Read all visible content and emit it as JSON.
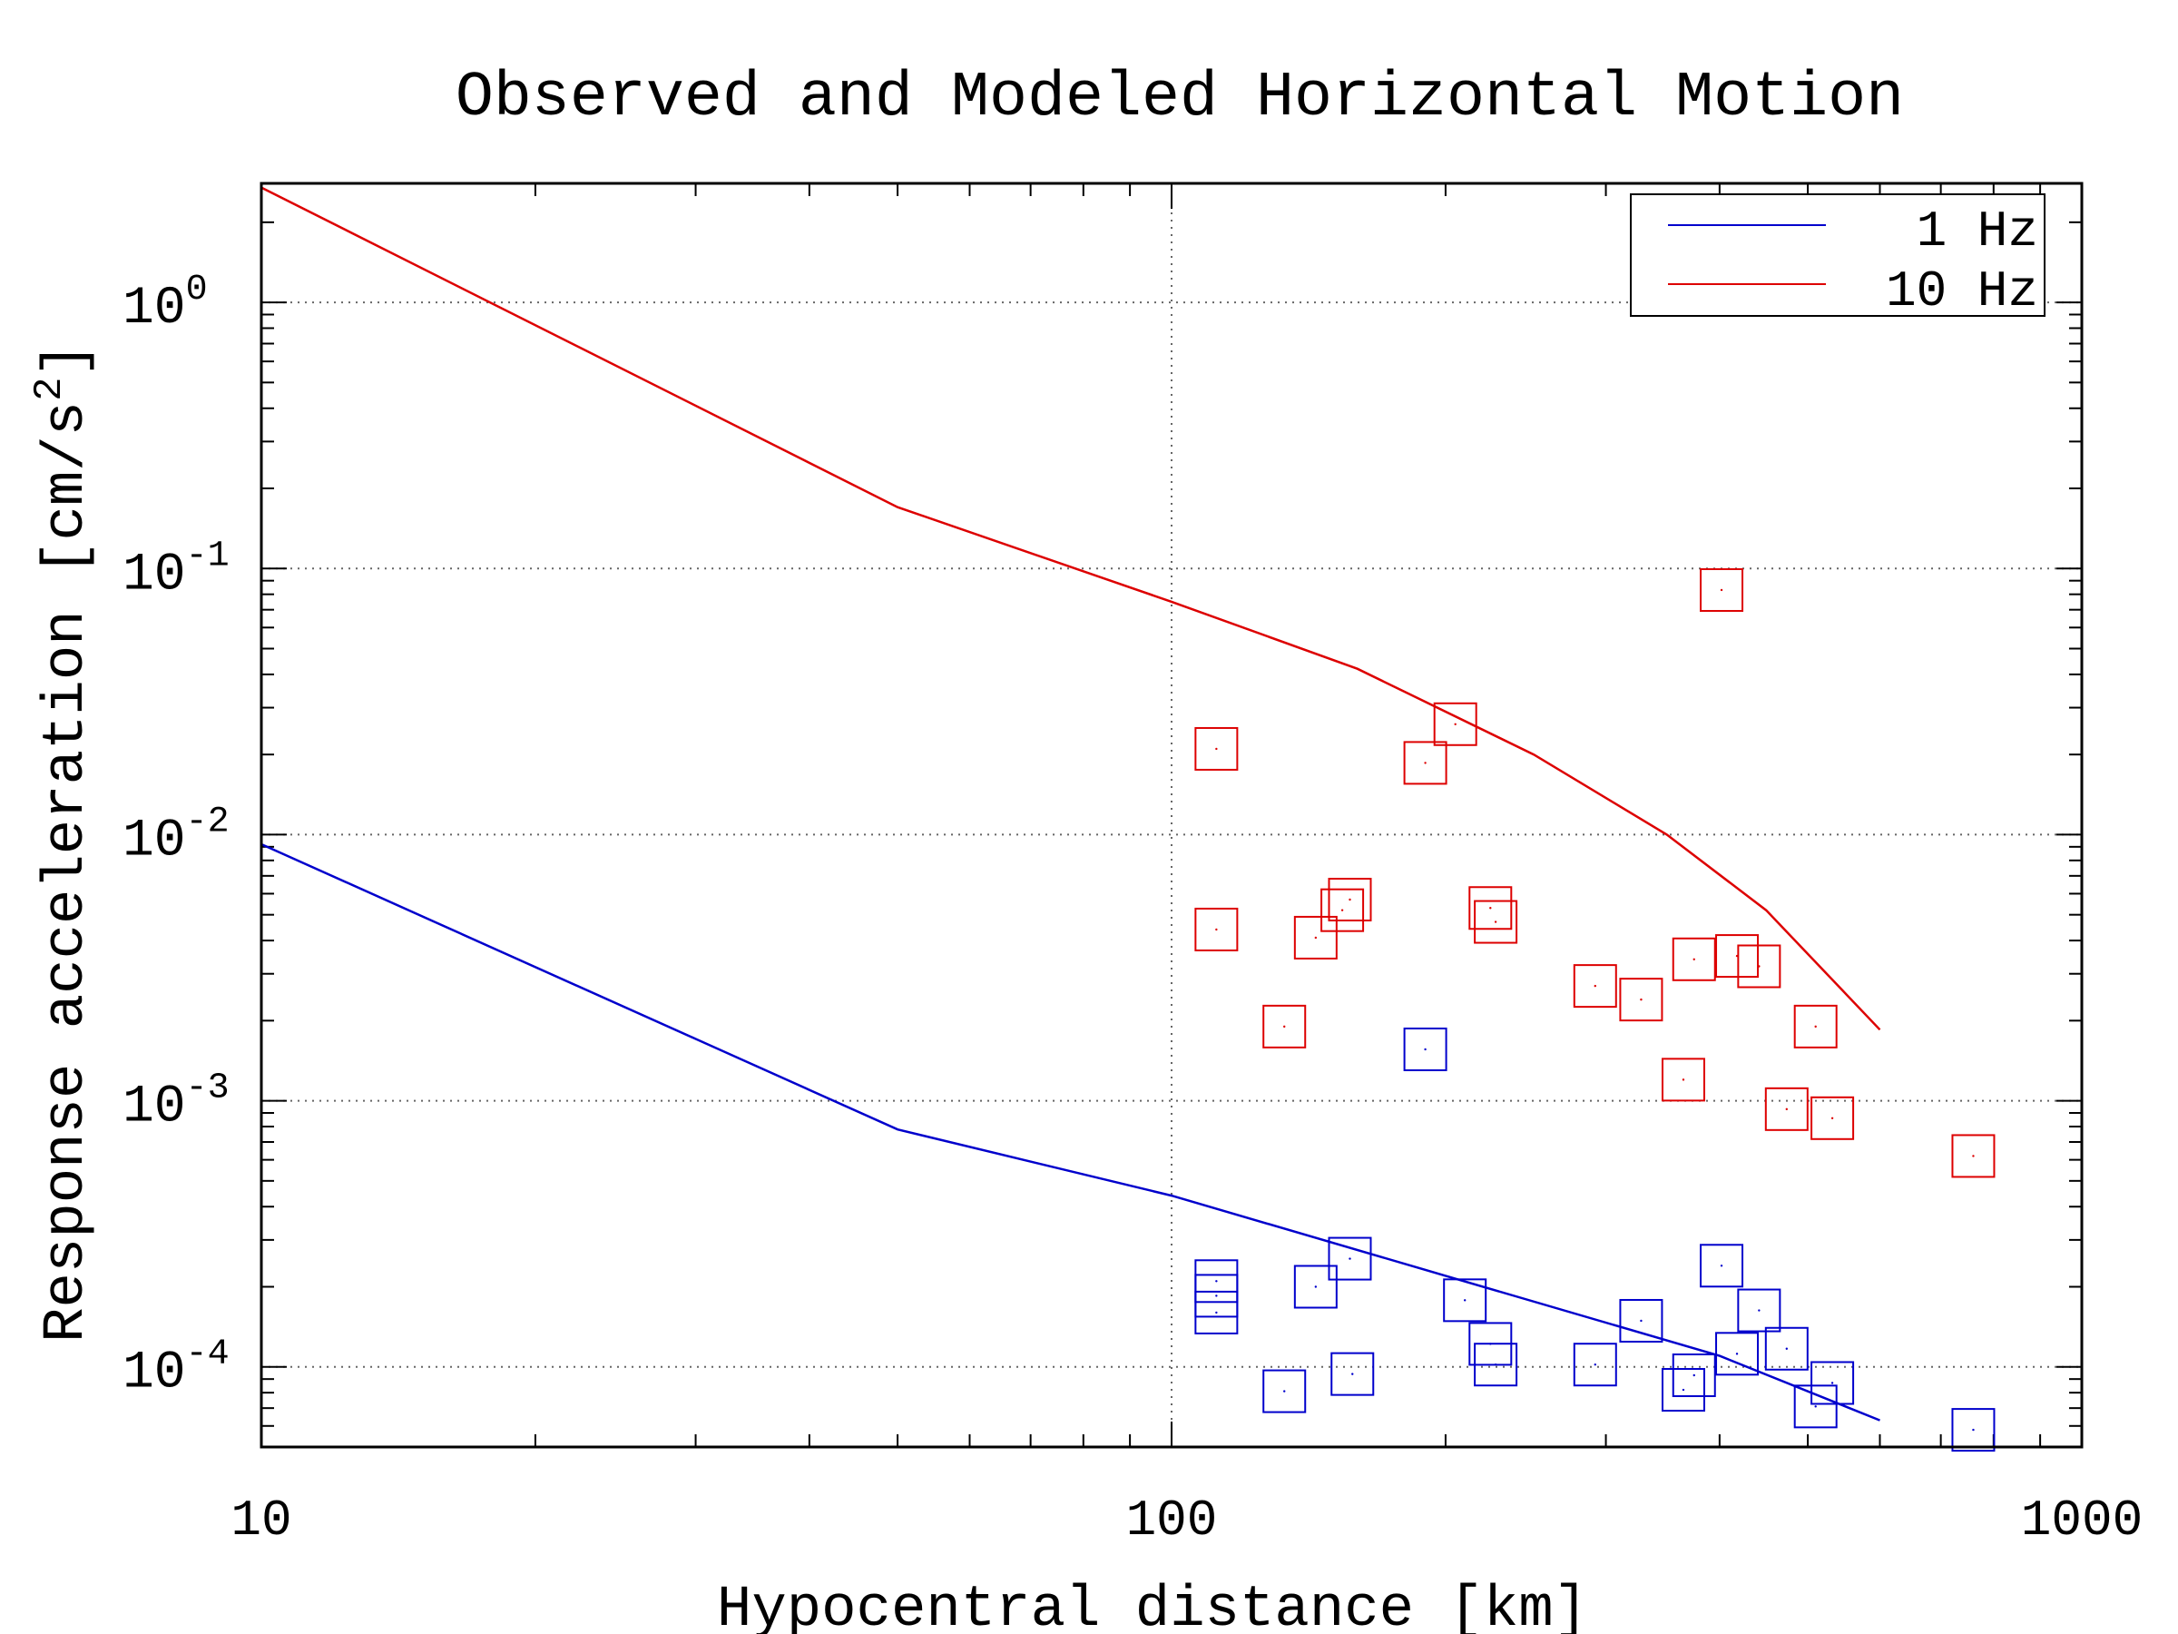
{
  "chart_data": {
    "type": "scatter",
    "title": "Observed and Modeled Horizontal Motion",
    "xlabel": "Hypocentral distance [km]",
    "ylabel": "Response acceleration [cm/s",
    "ylabel_sup": "2",
    "ylabel_end": "]",
    "xscale": "log",
    "yscale": "log",
    "xlim": [
      10,
      1000
    ],
    "ylim": [
      5e-05,
      2.8
    ],
    "x_ticks": [
      {
        "value": 10,
        "label": "10"
      },
      {
        "value": 100,
        "label": "100"
      },
      {
        "value": 1000,
        "label": "1000"
      }
    ],
    "y_ticks": [
      {
        "value": 1,
        "base": "10",
        "exp": "0"
      },
      {
        "value": 0.1,
        "base": "10",
        "exp": "-1"
      },
      {
        "value": 0.01,
        "base": "10",
        "exp": "-2"
      },
      {
        "value": 0.001,
        "base": "10",
        "exp": "-3"
      },
      {
        "value": 0.0001,
        "base": "10",
        "exp": "-4"
      }
    ],
    "grid": true,
    "legend": {
      "position": "top-right",
      "entries": [
        {
          "label": "1 Hz",
          "color": "#0000cc"
        },
        {
          "label": "10 Hz",
          "color": "#dd0000"
        }
      ]
    },
    "model_lines": [
      {
        "name": "1 Hz",
        "color": "#0000cc",
        "points": [
          [
            10,
            0.0092
          ],
          [
            50,
            0.00078
          ],
          [
            100,
            0.00044
          ],
          [
            200,
            0.00022
          ],
          [
            400,
            0.00011
          ],
          [
            600,
            6.3e-05
          ]
        ]
      },
      {
        "name": "10 Hz",
        "color": "#dd0000",
        "points": [
          [
            10,
            2.7
          ],
          [
            50,
            0.17
          ],
          [
            100,
            0.075
          ],
          [
            160,
            0.042
          ],
          [
            250,
            0.02
          ],
          [
            350,
            0.01
          ],
          [
            450,
            0.0052
          ],
          [
            600,
            0.00185
          ]
        ]
      }
    ],
    "observed_series": [
      {
        "name": "1 Hz",
        "color": "#0000cc",
        "points": [
          [
            112,
            0.00021
          ],
          [
            112,
            0.000185
          ],
          [
            112,
            0.00016
          ],
          [
            133,
            8.1e-05
          ],
          [
            144,
            0.0002
          ],
          [
            157,
            0.000255
          ],
          [
            158,
            9.4e-05
          ],
          [
            190,
            0.00156
          ],
          [
            210,
            0.000178
          ],
          [
            224,
            0.000122
          ],
          [
            227,
            0.000102
          ],
          [
            292,
            0.000102
          ],
          [
            328,
            0.000149
          ],
          [
            365,
            8.2e-05
          ],
          [
            375,
            9.3e-05
          ],
          [
            402,
            0.00024
          ],
          [
            418,
            0.000112
          ],
          [
            442,
            0.000163
          ],
          [
            474,
            0.000117
          ],
          [
            510,
            7.1e-05
          ],
          [
            532,
            8.7e-05
          ],
          [
            760,
            5.8e-05
          ]
        ]
      },
      {
        "name": "10 Hz",
        "color": "#dd0000",
        "points": [
          [
            112,
            0.021
          ],
          [
            112,
            0.0044
          ],
          [
            133,
            0.0019
          ],
          [
            144,
            0.0041
          ],
          [
            154,
            0.0052
          ],
          [
            157,
            0.0057
          ],
          [
            190,
            0.0186
          ],
          [
            205,
            0.026
          ],
          [
            224,
            0.0053
          ],
          [
            227,
            0.0047
          ],
          [
            292,
            0.0027
          ],
          [
            328,
            0.0024
          ],
          [
            365,
            0.0012
          ],
          [
            375,
            0.0034
          ],
          [
            402,
            0.083
          ],
          [
            418,
            0.0035
          ],
          [
            442,
            0.0032
          ],
          [
            474,
            0.00093
          ],
          [
            510,
            0.0019
          ],
          [
            532,
            0.00086
          ],
          [
            760,
            0.00062
          ]
        ]
      }
    ]
  }
}
